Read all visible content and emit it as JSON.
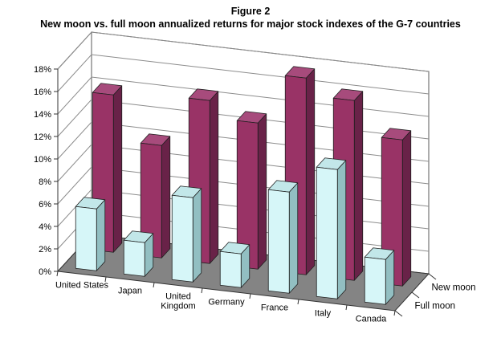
{
  "figure": {
    "title": "Figure 2",
    "subtitle": "New moon vs. full moon annualized returns for major stock indexes of the G-7 countries"
  },
  "chart_data": {
    "type": "bar",
    "style": "3d-column",
    "title": "Figure 2",
    "subtitle": "New moon vs. full moon annualized returns for major stock indexes of the G-7 countries",
    "categories": [
      "United States",
      "Japan",
      "United Kingdom",
      "Germany",
      "France",
      "Italy",
      "Canada"
    ],
    "category_label_lines": [
      [
        "United States"
      ],
      [
        "Japan"
      ],
      [
        "United",
        "Kingdom"
      ],
      [
        "Germany"
      ],
      [
        "France"
      ],
      [
        "Italy"
      ],
      [
        "Canada"
      ]
    ],
    "series": [
      {
        "name": "New moon",
        "row": "back",
        "values": [
          14.0,
          10.0,
          14.5,
          13.0,
          17.5,
          16.0,
          13.0
        ],
        "colors": {
          "front": "#993366",
          "top": "#A74B7C",
          "side": "#692248"
        }
      },
      {
        "name": "Full moon",
        "row": "front",
        "values": [
          5.5,
          3.0,
          7.5,
          3.0,
          9.0,
          11.5,
          4.0
        ],
        "colors": {
          "front": "#D6F6F8",
          "top": "#C2E7E9",
          "side": "#92BFC2"
        }
      }
    ],
    "value_axis": {
      "min": 0,
      "max": 18,
      "step": 2,
      "suffix": "%",
      "tick_labels": [
        "0%",
        "2%",
        "4%",
        "6%",
        "8%",
        "10%",
        "12%",
        "14%",
        "16%",
        "18%"
      ]
    },
    "legend": {
      "position": "depth-axis-right",
      "labels": [
        "New moon",
        "Full moon"
      ]
    },
    "units": "annualized return (percent)",
    "grid": true,
    "colors": {
      "wall_fill": "#FFFFFF",
      "wall_border": "#595959",
      "gridline": "#8C8C8C",
      "floor_fill": "#848484",
      "floor_border": "#333333",
      "bar_outline": "#1F1F1F",
      "axis": "#333333",
      "text": "#000000"
    }
  }
}
